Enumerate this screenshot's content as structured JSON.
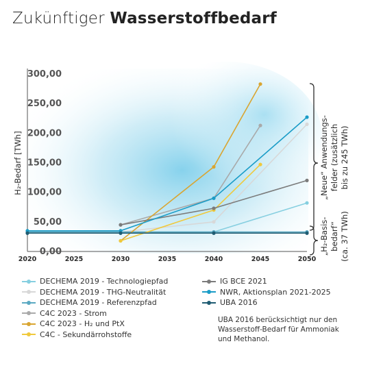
{
  "title": {
    "part1": "Zukünftiger ",
    "part2": "Wasserstoffbedarf"
  },
  "note": "UBA 2016 berücksichtigt nur den Wasserstoff-Bedarf für Ammoniak und Methanol.",
  "side_labels": {
    "upper": [
      "„Neue“ Anwendungs-",
      "felder (zusätzlich",
      "bis zu 245 TWh)"
    ],
    "lower": [
      "„H₂-Basis-",
      "bedarf“",
      "(ca. 37 TWh)"
    ]
  },
  "chart_data": {
    "type": "line",
    "title": "",
    "xlabel": "",
    "ylabel": "H₂-Bedarf [TWh]",
    "xlim": [
      2020,
      2050
    ],
    "ylim": [
      0,
      300
    ],
    "x_ticks": [
      "2020",
      "2025",
      "2030",
      "2035",
      "2040",
      "2045",
      "2050"
    ],
    "y_ticks": [
      "0,00",
      "50,00",
      "100,00",
      "150,00",
      "200,00",
      "250,00",
      "300,00"
    ],
    "grid": false,
    "legend_position": "bottom",
    "series": [
      {
        "name": "DECHEMA 2019 - Technologiepfad",
        "color": "#86cfe0",
        "x": [
          2020,
          2030,
          2040,
          2050
        ],
        "y": [
          33,
          33,
          33,
          82
        ]
      },
      {
        "name": "DECHEMA 2019 - THG-Neutralität",
        "color": "#d8d8d8",
        "x": [
          2020,
          2030,
          2040,
          2050
        ],
        "y": [
          33,
          33,
          50,
          215
        ]
      },
      {
        "name": "DECHEMA 2019 - Referenzpfad",
        "color": "#5aa9c2",
        "x": [
          2020,
          2030,
          2040,
          2050
        ],
        "y": [
          33,
          33,
          33,
          33
        ]
      },
      {
        "name": "C4C 2023 - Strom",
        "color": "#a9a9a9",
        "x": [
          2030,
          2040,
          2045
        ],
        "y": [
          45,
          90,
          213
        ]
      },
      {
        "name": "C4C 2023 - H₂ und PtX",
        "color": "#d9a531",
        "x": [
          2030,
          2040,
          2045
        ],
        "y": [
          18,
          143,
          283
        ]
      },
      {
        "name": "C4C - Sekundärrohstoffe",
        "color": "#f0c93c",
        "x": [
          2030,
          2040,
          2045
        ],
        "y": [
          18,
          70,
          147
        ]
      },
      {
        "name": "IG BCE 2021",
        "color": "#7b7b7b",
        "x": [
          2030,
          2040,
          2050
        ],
        "y": [
          45,
          73,
          120
        ]
      },
      {
        "name": "NWR, Aktionsplan 2021-2025",
        "color": "#1a9cc7",
        "x": [
          2020,
          2030,
          2040,
          2050
        ],
        "y": [
          35,
          35,
          90,
          227
        ]
      },
      {
        "name": "UBA 2016",
        "color": "#1f5c72",
        "x": [
          2020,
          2030,
          2040,
          2050
        ],
        "y": [
          31,
          31,
          31,
          31
        ]
      }
    ]
  }
}
